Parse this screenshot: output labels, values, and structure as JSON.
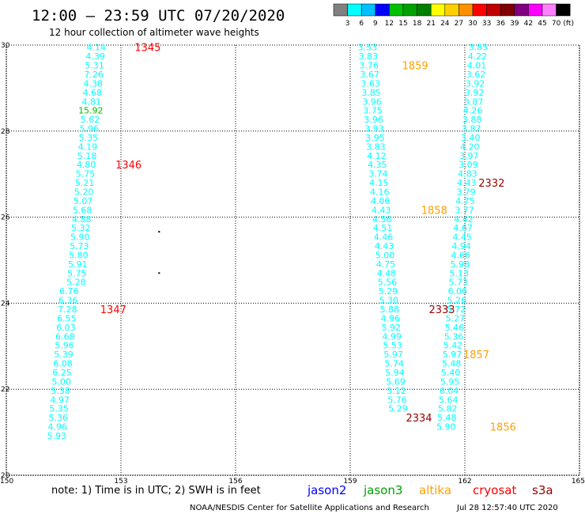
{
  "header": {
    "title": "12:00 – 23:59 UTC 07/20/2020",
    "subtitle": "12 hour collection of altimeter wave heights"
  },
  "color_scale": {
    "colors": [
      "#808080",
      "#00ffff",
      "#00c0ff",
      "#0000ff",
      "#00c000",
      "#00a000",
      "#008000",
      "#ffff00",
      "#ffd000",
      "#ff9000",
      "#ff0000",
      "#c00000",
      "#800000",
      "#800080",
      "#ff00ff",
      "#ff80ff",
      "#000000"
    ],
    "labels": [
      "3",
      "6",
      "9",
      "12",
      "15",
      "18",
      "21",
      "24",
      "27",
      "30",
      "33",
      "36",
      "39",
      "42",
      "45",
      "70",
      "(ft)"
    ]
  },
  "note": "note:  1) Time is in UTC;  2) SWH is in feet",
  "satellites": [
    {
      "name": "jason2",
      "color": "#0000ff"
    },
    {
      "name": "jason3",
      "color": "#00a000"
    },
    {
      "name": "altika",
      "color": "#ffa000"
    },
    {
      "name": "cryosat",
      "color": "#ff0000"
    },
    {
      "name": "s3a",
      "color": "#990000"
    }
  ],
  "footer": {
    "credit": "NOAA/NESDIS Center for Satellite Applications and Research",
    "timestamp": "Jul 28 12:57:40 UTC 2020"
  },
  "chart_data": {
    "type": "scatter",
    "xlim": [
      150,
      165
    ],
    "ylim": [
      20,
      30
    ],
    "x_ticks": [
      150,
      153,
      156,
      159,
      162,
      165
    ],
    "y_ticks": [
      20,
      22,
      24,
      26,
      28,
      30
    ],
    "y_tick_labels": [
      "20",
      "22",
      "24",
      "26",
      "28",
      "30"
    ],
    "grid": true,
    "points": [
      {
        "x": 152.35,
        "y": 29.95,
        "t": "4.14",
        "c": "#00ffff"
      },
      {
        "x": 152.33,
        "y": 29.74,
        "t": "4.39",
        "c": "#00ffff"
      },
      {
        "x": 152.31,
        "y": 29.53,
        "t": "5.31",
        "c": "#00ffff"
      },
      {
        "x": 152.29,
        "y": 29.32,
        "t": "7.26",
        "c": "#00ffff"
      },
      {
        "x": 152.27,
        "y": 29.11,
        "t": "4.38",
        "c": "#00ffff"
      },
      {
        "x": 152.25,
        "y": 28.9,
        "t": "4.68",
        "c": "#00ffff"
      },
      {
        "x": 152.23,
        "y": 28.69,
        "t": "4.81",
        "c": "#00ffff"
      },
      {
        "x": 152.21,
        "y": 28.48,
        "t": "15.92",
        "c": "#00c000"
      },
      {
        "x": 152.19,
        "y": 28.27,
        "t": "5.62",
        "c": "#00ffff"
      },
      {
        "x": 152.17,
        "y": 28.06,
        "t": "5.96",
        "c": "#00ffff"
      },
      {
        "x": 152.15,
        "y": 27.85,
        "t": "5.35",
        "c": "#00ffff"
      },
      {
        "x": 152.13,
        "y": 27.64,
        "t": "4.19",
        "c": "#00ffff"
      },
      {
        "x": 152.11,
        "y": 27.43,
        "t": "5.18",
        "c": "#00ffff"
      },
      {
        "x": 152.09,
        "y": 27.22,
        "t": "4.80",
        "c": "#00ffff"
      },
      {
        "x": 152.07,
        "y": 27.01,
        "t": "5.75",
        "c": "#00ffff"
      },
      {
        "x": 152.05,
        "y": 26.8,
        "t": "5.21",
        "c": "#00ffff"
      },
      {
        "x": 152.03,
        "y": 26.59,
        "t": "5.20",
        "c": "#00ffff"
      },
      {
        "x": 152.01,
        "y": 26.38,
        "t": "5.07",
        "c": "#00ffff"
      },
      {
        "x": 151.99,
        "y": 26.17,
        "t": "5.68",
        "c": "#00ffff"
      },
      {
        "x": 151.97,
        "y": 25.96,
        "t": "4.88",
        "c": "#00ffff"
      },
      {
        "x": 151.95,
        "y": 25.75,
        "t": "5.32",
        "c": "#00ffff"
      },
      {
        "x": 151.93,
        "y": 25.54,
        "t": "5.90",
        "c": "#00ffff"
      },
      {
        "x": 151.91,
        "y": 25.33,
        "t": "5.73",
        "c": "#00ffff"
      },
      {
        "x": 151.89,
        "y": 25.12,
        "t": "5.80",
        "c": "#00ffff"
      },
      {
        "x": 151.87,
        "y": 24.91,
        "t": "5.91",
        "c": "#00ffff"
      },
      {
        "x": 151.85,
        "y": 24.7,
        "t": "5.75",
        "c": "#00ffff"
      },
      {
        "x": 151.83,
        "y": 24.49,
        "t": "5.28",
        "c": "#00ffff"
      },
      {
        "x": 151.64,
        "y": 24.28,
        "t": "6.76",
        "c": "#00ffff"
      },
      {
        "x": 151.62,
        "y": 24.07,
        "t": "6.36",
        "c": "#00ffff"
      },
      {
        "x": 151.6,
        "y": 23.86,
        "t": "7.28",
        "c": "#00ffff"
      },
      {
        "x": 151.58,
        "y": 23.65,
        "t": "6.55",
        "c": "#00ffff"
      },
      {
        "x": 151.56,
        "y": 23.44,
        "t": "6.03",
        "c": "#00ffff"
      },
      {
        "x": 151.54,
        "y": 23.23,
        "t": "6.68",
        "c": "#00ffff"
      },
      {
        "x": 151.52,
        "y": 23.02,
        "t": "5.96",
        "c": "#00ffff"
      },
      {
        "x": 151.5,
        "y": 22.81,
        "t": "5.39",
        "c": "#00ffff"
      },
      {
        "x": 151.48,
        "y": 22.6,
        "t": "6.08",
        "c": "#00ffff"
      },
      {
        "x": 151.46,
        "y": 22.39,
        "t": "6.25",
        "c": "#00ffff"
      },
      {
        "x": 151.44,
        "y": 22.18,
        "t": "5.00",
        "c": "#00ffff"
      },
      {
        "x": 151.42,
        "y": 21.97,
        "t": "5.38",
        "c": "#00ffff"
      },
      {
        "x": 151.4,
        "y": 21.76,
        "t": "4.97",
        "c": "#00ffff"
      },
      {
        "x": 151.38,
        "y": 21.55,
        "t": "5.35",
        "c": "#00ffff"
      },
      {
        "x": 151.36,
        "y": 21.34,
        "t": "5.36",
        "c": "#00ffff"
      },
      {
        "x": 151.34,
        "y": 21.13,
        "t": "4.96",
        "c": "#00ffff"
      },
      {
        "x": 151.32,
        "y": 20.92,
        "t": "5.93",
        "c": "#00ffff"
      },
      {
        "x": 159.45,
        "y": 29.95,
        "t": "3.53",
        "c": "#00ffff"
      },
      {
        "x": 159.47,
        "y": 29.74,
        "t": "3.83",
        "c": "#00ffff"
      },
      {
        "x": 159.49,
        "y": 29.53,
        "t": "3.76",
        "c": "#00ffff"
      },
      {
        "x": 159.51,
        "y": 29.32,
        "t": "3.67",
        "c": "#00ffff"
      },
      {
        "x": 159.53,
        "y": 29.11,
        "t": "3.63",
        "c": "#00ffff"
      },
      {
        "x": 159.55,
        "y": 28.9,
        "t": "3.85",
        "c": "#00ffff"
      },
      {
        "x": 159.57,
        "y": 28.69,
        "t": "3.96",
        "c": "#00ffff"
      },
      {
        "x": 159.59,
        "y": 28.48,
        "t": "3.75",
        "c": "#00ffff"
      },
      {
        "x": 159.61,
        "y": 28.27,
        "t": "3.96",
        "c": "#00ffff"
      },
      {
        "x": 159.63,
        "y": 28.06,
        "t": "3.93",
        "c": "#00ffff"
      },
      {
        "x": 159.65,
        "y": 27.85,
        "t": "3.95",
        "c": "#00ffff"
      },
      {
        "x": 159.67,
        "y": 27.64,
        "t": "3.83",
        "c": "#00ffff"
      },
      {
        "x": 159.69,
        "y": 27.43,
        "t": "4.12",
        "c": "#00ffff"
      },
      {
        "x": 159.71,
        "y": 27.22,
        "t": "4.35",
        "c": "#00ffff"
      },
      {
        "x": 159.73,
        "y": 27.01,
        "t": "3.74",
        "c": "#00ffff"
      },
      {
        "x": 159.75,
        "y": 26.8,
        "t": "4.15",
        "c": "#00ffff"
      },
      {
        "x": 159.77,
        "y": 26.59,
        "t": "4.16",
        "c": "#00ffff"
      },
      {
        "x": 159.79,
        "y": 26.38,
        "t": "4.06",
        "c": "#00ffff"
      },
      {
        "x": 159.81,
        "y": 26.17,
        "t": "4.43",
        "c": "#00ffff"
      },
      {
        "x": 159.83,
        "y": 25.96,
        "t": "4.56",
        "c": "#00ffff"
      },
      {
        "x": 159.85,
        "y": 25.75,
        "t": "4.51",
        "c": "#00ffff"
      },
      {
        "x": 159.87,
        "y": 25.54,
        "t": "4.46",
        "c": "#00ffff"
      },
      {
        "x": 159.89,
        "y": 25.33,
        "t": "4.43",
        "c": "#00ffff"
      },
      {
        "x": 159.91,
        "y": 25.12,
        "t": "5.00",
        "c": "#00ffff"
      },
      {
        "x": 159.93,
        "y": 24.91,
        "t": "4.75",
        "c": "#00ffff"
      },
      {
        "x": 159.95,
        "y": 24.7,
        "t": "4.48",
        "c": "#00ffff"
      },
      {
        "x": 159.97,
        "y": 24.49,
        "t": "5.56",
        "c": "#00ffff"
      },
      {
        "x": 159.99,
        "y": 24.28,
        "t": "5.29",
        "c": "#00ffff"
      },
      {
        "x": 160.01,
        "y": 24.07,
        "t": "5.30",
        "c": "#00ffff"
      },
      {
        "x": 160.03,
        "y": 23.86,
        "t": "5.88",
        "c": "#00ffff"
      },
      {
        "x": 160.05,
        "y": 23.65,
        "t": "4.96",
        "c": "#00ffff"
      },
      {
        "x": 160.07,
        "y": 23.44,
        "t": "5.92",
        "c": "#00ffff"
      },
      {
        "x": 160.09,
        "y": 23.23,
        "t": "4.99",
        "c": "#00ffff"
      },
      {
        "x": 160.11,
        "y": 23.02,
        "t": "5.53",
        "c": "#00ffff"
      },
      {
        "x": 160.13,
        "y": 22.81,
        "t": "5.97",
        "c": "#00ffff"
      },
      {
        "x": 160.15,
        "y": 22.6,
        "t": "5.74",
        "c": "#00ffff"
      },
      {
        "x": 160.17,
        "y": 22.39,
        "t": "5.94",
        "c": "#00ffff"
      },
      {
        "x": 160.19,
        "y": 22.18,
        "t": "5.69",
        "c": "#00ffff"
      },
      {
        "x": 160.21,
        "y": 21.97,
        "t": "5.12",
        "c": "#00ffff"
      },
      {
        "x": 160.23,
        "y": 21.76,
        "t": "5.76",
        "c": "#00ffff"
      },
      {
        "x": 160.25,
        "y": 21.55,
        "t": "5.29",
        "c": "#00ffff"
      },
      {
        "x": 162.35,
        "y": 29.95,
        "t": "3.85",
        "c": "#00ffff"
      },
      {
        "x": 162.33,
        "y": 29.74,
        "t": "4.22",
        "c": "#00ffff"
      },
      {
        "x": 162.31,
        "y": 29.53,
        "t": "4.01",
        "c": "#00ffff"
      },
      {
        "x": 162.29,
        "y": 29.32,
        "t": "3.62",
        "c": "#00ffff"
      },
      {
        "x": 162.27,
        "y": 29.11,
        "t": "3.92",
        "c": "#00ffff"
      },
      {
        "x": 162.25,
        "y": 28.9,
        "t": "3.92",
        "c": "#00ffff"
      },
      {
        "x": 162.23,
        "y": 28.69,
        "t": "3.87",
        "c": "#00ffff"
      },
      {
        "x": 162.21,
        "y": 28.48,
        "t": "4.26",
        "c": "#00ffff"
      },
      {
        "x": 162.19,
        "y": 28.27,
        "t": "3.88",
        "c": "#00ffff"
      },
      {
        "x": 162.17,
        "y": 28.06,
        "t": "3.87",
        "c": "#00ffff"
      },
      {
        "x": 162.15,
        "y": 27.85,
        "t": "3.40",
        "c": "#00ffff"
      },
      {
        "x": 162.13,
        "y": 27.64,
        "t": "4.20",
        "c": "#00ffff"
      },
      {
        "x": 162.11,
        "y": 27.43,
        "t": "3.97",
        "c": "#00ffff"
      },
      {
        "x": 162.09,
        "y": 27.22,
        "t": "3.09",
        "c": "#00ffff"
      },
      {
        "x": 162.07,
        "y": 27.01,
        "t": "4.83",
        "c": "#00ffff"
      },
      {
        "x": 162.05,
        "y": 26.8,
        "t": "4.43",
        "c": "#00ffff"
      },
      {
        "x": 162.03,
        "y": 26.59,
        "t": "3.79",
        "c": "#00ffff"
      },
      {
        "x": 162.01,
        "y": 26.38,
        "t": "4.75",
        "c": "#00ffff"
      },
      {
        "x": 161.99,
        "y": 26.17,
        "t": "3.77",
        "c": "#00ffff"
      },
      {
        "x": 161.97,
        "y": 25.96,
        "t": "4.42",
        "c": "#00ffff"
      },
      {
        "x": 161.95,
        "y": 25.75,
        "t": "4.67",
        "c": "#00ffff"
      },
      {
        "x": 161.93,
        "y": 25.54,
        "t": "4.45",
        "c": "#00ffff"
      },
      {
        "x": 161.91,
        "y": 25.33,
        "t": "4.94",
        "c": "#00ffff"
      },
      {
        "x": 161.89,
        "y": 25.12,
        "t": "4.66",
        "c": "#00ffff"
      },
      {
        "x": 161.87,
        "y": 24.91,
        "t": "5.98",
        "c": "#00ffff"
      },
      {
        "x": 161.85,
        "y": 24.7,
        "t": "5.13",
        "c": "#00ffff"
      },
      {
        "x": 161.83,
        "y": 24.49,
        "t": "5.73",
        "c": "#00ffff"
      },
      {
        "x": 161.81,
        "y": 24.28,
        "t": "6.06",
        "c": "#00ffff"
      },
      {
        "x": 161.79,
        "y": 24.07,
        "t": "5.26",
        "c": "#00ffff"
      },
      {
        "x": 161.77,
        "y": 23.86,
        "t": "5.72",
        "c": "#00ffff"
      },
      {
        "x": 161.75,
        "y": 23.65,
        "t": "5.27",
        "c": "#00ffff"
      },
      {
        "x": 161.73,
        "y": 23.44,
        "t": "5.46",
        "c": "#00ffff"
      },
      {
        "x": 161.71,
        "y": 23.23,
        "t": "5.36",
        "c": "#00ffff"
      },
      {
        "x": 161.69,
        "y": 23.02,
        "t": "5.42",
        "c": "#00ffff"
      },
      {
        "x": 161.67,
        "y": 22.81,
        "t": "5.97",
        "c": "#00ffff"
      },
      {
        "x": 161.65,
        "y": 22.6,
        "t": "5.48",
        "c": "#00ffff"
      },
      {
        "x": 161.63,
        "y": 22.39,
        "t": "5.40",
        "c": "#00ffff"
      },
      {
        "x": 161.61,
        "y": 22.18,
        "t": "5.95",
        "c": "#00ffff"
      },
      {
        "x": 161.59,
        "y": 21.97,
        "t": "6.04",
        "c": "#00ffff"
      },
      {
        "x": 161.57,
        "y": 21.76,
        "t": "5.64",
        "c": "#00ffff"
      },
      {
        "x": 161.55,
        "y": 21.55,
        "t": "5.82",
        "c": "#00ffff"
      },
      {
        "x": 161.53,
        "y": 21.34,
        "t": "5.48",
        "c": "#00ffff"
      },
      {
        "x": 161.51,
        "y": 21.13,
        "t": "5.90",
        "c": "#00ffff"
      }
    ],
    "pass_labels": [
      {
        "x": 153.7,
        "y": 29.95,
        "t": "1345",
        "c": "#ff0000"
      },
      {
        "x": 153.2,
        "y": 27.22,
        "t": "1346",
        "c": "#ff0000"
      },
      {
        "x": 152.8,
        "y": 23.86,
        "t": "1347",
        "c": "#ff0000"
      },
      {
        "x": 160.7,
        "y": 29.53,
        "t": "1859",
        "c": "#ffa000"
      },
      {
        "x": 161.2,
        "y": 26.17,
        "t": "1858",
        "c": "#ffa000"
      },
      {
        "x": 162.3,
        "y": 22.81,
        "t": "1857",
        "c": "#ffa000"
      },
      {
        "x": 163.0,
        "y": 21.13,
        "t": "1856",
        "c": "#ffa000"
      },
      {
        "x": 162.7,
        "y": 26.8,
        "t": "2332",
        "c": "#990000"
      },
      {
        "x": 161.4,
        "y": 23.86,
        "t": "2333",
        "c": "#990000"
      },
      {
        "x": 160.8,
        "y": 21.34,
        "t": "2334",
        "c": "#990000"
      }
    ],
    "marks": [
      {
        "x": 154.0,
        "y": 25.66
      },
      {
        "x": 154.0,
        "y": 24.7
      }
    ]
  }
}
